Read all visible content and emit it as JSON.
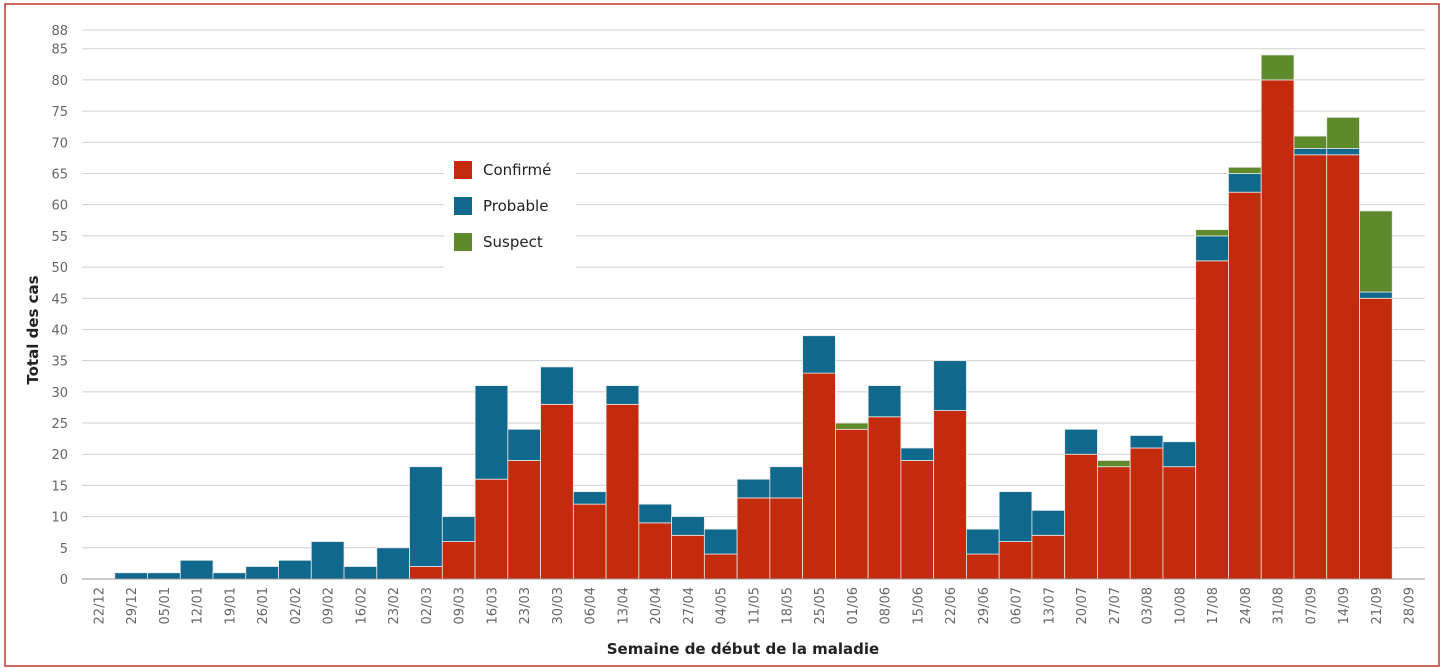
{
  "chart_data": {
    "type": "stacked-bar",
    "x_label": "Semaine de début de la maladie",
    "y_label": "Total des cas",
    "categories": [
      "22/12",
      "29/12",
      "05/01",
      "12/01",
      "19/01",
      "26/01",
      "02/02",
      "09/02",
      "16/02",
      "23/02",
      "02/03",
      "09/03",
      "16/03",
      "23/03",
      "30/03",
      "06/04",
      "13/04",
      "20/04",
      "27/04",
      "04/05",
      "11/05",
      "18/05",
      "25/05",
      "01/06",
      "08/06",
      "15/06",
      "22/06",
      "29/06",
      "06/07",
      "13/07",
      "20/07",
      "27/07",
      "03/08",
      "10/08",
      "17/08",
      "24/08",
      "31/08",
      "07/09",
      "14/09",
      "21/09",
      "28/09"
    ],
    "series": [
      {
        "name": "Confirmé",
        "color": "#c42a0c",
        "values": [
          0,
          0,
          0,
          0,
          0,
          0,
          0,
          0,
          0,
          0,
          2,
          6,
          16,
          19,
          28,
          12,
          28,
          9,
          7,
          4,
          13,
          13,
          33,
          24,
          26,
          19,
          27,
          4,
          6,
          7,
          20,
          18,
          21,
          18,
          51,
          62,
          80,
          68,
          68,
          45,
          0
        ]
      },
      {
        "name": "Probable",
        "color": "#10698c",
        "values": [
          0,
          1,
          1,
          3,
          1,
          2,
          3,
          6,
          2,
          5,
          16,
          4,
          15,
          5,
          6,
          2,
          3,
          3,
          3,
          4,
          3,
          5,
          6,
          0,
          5,
          2,
          8,
          4,
          8,
          4,
          4,
          0,
          2,
          4,
          4,
          3,
          0,
          1,
          1,
          1,
          0
        ]
      },
      {
        "name": "Suspect",
        "color": "#5e8a2c",
        "values": [
          0,
          0,
          0,
          0,
          0,
          0,
          0,
          0,
          0,
          0,
          0,
          0,
          0,
          0,
          0,
          0,
          0,
          0,
          0,
          0,
          0,
          0,
          0,
          1,
          0,
          0,
          0,
          0,
          0,
          0,
          0,
          1,
          0,
          0,
          1,
          1,
          4,
          2,
          5,
          13,
          0
        ]
      }
    ],
    "ylim": [
      0,
      88
    ],
    "yticks": [
      0,
      5,
      10,
      15,
      20,
      25,
      30,
      35,
      40,
      45,
      50,
      55,
      60,
      65,
      70,
      75,
      80,
      85,
      88
    ],
    "grid": true
  }
}
